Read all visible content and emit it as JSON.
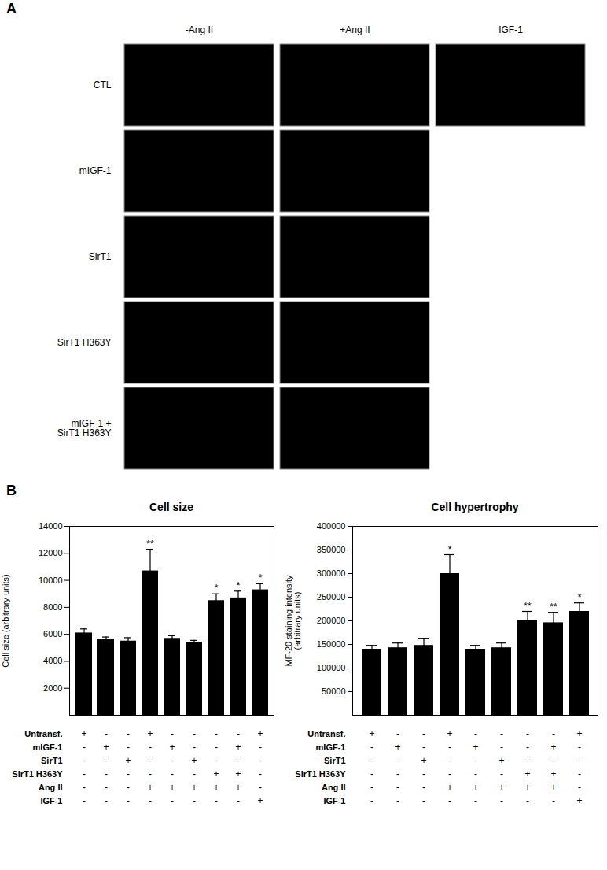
{
  "chart_data": [
    {
      "type": "image_grid",
      "panel_label": "A",
      "columns": [
        "-Ang II",
        "+Ang II",
        "IGF-1"
      ],
      "rows": [
        "CTL",
        "mIGF-1",
        "SirT1",
        "SirT1 H363Y",
        "mIGF-1 +\nSirT1 H363Y"
      ],
      "panels_per_row": [
        3,
        2,
        2,
        2,
        2
      ],
      "color": "#000000"
    },
    {
      "type": "bar",
      "panel_label": "B",
      "title": "Cell size",
      "ylabel": "Cell size (arbitrary units)",
      "categories": [
        null,
        null,
        null,
        null,
        null,
        null,
        null,
        null,
        null
      ],
      "values": [
        6100,
        5600,
        5500,
        10700,
        5700,
        5400,
        8500,
        8700,
        9300
      ],
      "errors": [
        300,
        200,
        250,
        1600,
        200,
        150,
        500,
        500,
        450
      ],
      "annotations": [
        null,
        null,
        null,
        "**",
        null,
        null,
        "*",
        "*",
        "*"
      ],
      "condition_labels": [
        "Untransf.",
        "mIGF-1",
        "SirT1",
        "SirT1 H363Y",
        "Ang II",
        "IGF-1"
      ],
      "conditions": [
        [
          "+",
          "-",
          "-",
          "-",
          "-",
          "-"
        ],
        [
          "-",
          "+",
          "-",
          "-",
          "-",
          "-"
        ],
        [
          "-",
          "-",
          "+",
          "-",
          "-",
          "-"
        ],
        [
          "+",
          "-",
          "-",
          "-",
          "+",
          "-"
        ],
        [
          "-",
          "+",
          "-",
          "-",
          "+",
          "-"
        ],
        [
          "-",
          "-",
          "+",
          "-",
          "+",
          "-"
        ],
        [
          "-",
          "-",
          "-",
          "+",
          "+",
          "-"
        ],
        [
          "-",
          "+",
          "-",
          "+",
          "+",
          "-"
        ],
        [
          "+",
          "-",
          "-",
          "-",
          "-",
          "+"
        ]
      ],
      "ylim": [
        0,
        14000
      ],
      "yticks": [
        2000,
        4000,
        6000,
        8000,
        10000,
        12000,
        14000
      ],
      "color": "#000000",
      "grid": false
    },
    {
      "type": "bar",
      "title": "Cell hypertrophy",
      "ylabel": "MF-20 staining intensity\n(arbitrary units)",
      "categories": [
        null,
        null,
        null,
        null,
        null,
        null,
        null,
        null,
        null
      ],
      "values": [
        140000,
        143000,
        148000,
        300000,
        140000,
        143000,
        200000,
        196000,
        220000
      ],
      "errors": [
        8000,
        10000,
        15000,
        40000,
        8000,
        10000,
        20000,
        22000,
        18000
      ],
      "annotations": [
        null,
        null,
        null,
        "*",
        null,
        null,
        "**",
        "**",
        "*"
      ],
      "condition_labels": [
        "Untransf.",
        "mIGF-1",
        "SirT1",
        "SirT1 H363Y",
        "Ang II",
        "IGF-1"
      ],
      "conditions": [
        [
          "+",
          "-",
          "-",
          "-",
          "-",
          "-"
        ],
        [
          "-",
          "+",
          "-",
          "-",
          "-",
          "-"
        ],
        [
          "-",
          "-",
          "+",
          "-",
          "-",
          "-"
        ],
        [
          "+",
          "-",
          "-",
          "-",
          "+",
          "-"
        ],
        [
          "-",
          "+",
          "-",
          "-",
          "+",
          "-"
        ],
        [
          "-",
          "-",
          "+",
          "-",
          "+",
          "-"
        ],
        [
          "-",
          "-",
          "-",
          "+",
          "+",
          "-"
        ],
        [
          "-",
          "+",
          "-",
          "+",
          "+",
          "-"
        ],
        [
          "+",
          "-",
          "-",
          "-",
          "-",
          "+"
        ]
      ],
      "ylim": [
        0,
        400000
      ],
      "yticks": [
        50000,
        100000,
        150000,
        200000,
        250000,
        300000,
        350000,
        400000
      ],
      "color": "#000000",
      "grid": false
    }
  ]
}
